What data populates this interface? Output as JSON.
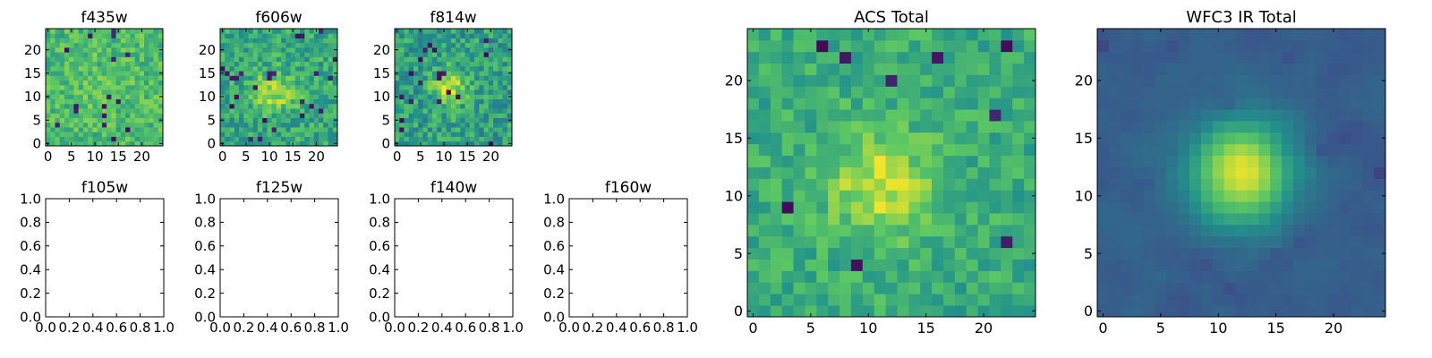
{
  "figure": {
    "background": "#ffffff",
    "colormap": "viridis",
    "colormap_stops": [
      "#440154",
      "#3b528b",
      "#21918c",
      "#5ec962",
      "#fde725"
    ]
  },
  "chart_data": [
    {
      "id": "f435w",
      "type": "heatmap",
      "title": "f435w",
      "xlim": [
        -0.5,
        24.5
      ],
      "ylim": [
        -0.5,
        24.5
      ],
      "grid": false,
      "xticks": [
        0,
        5,
        10,
        15,
        20
      ],
      "yticks": [
        0,
        5,
        10,
        15,
        20
      ],
      "xticklabels": [
        "0",
        "5",
        "10",
        "15",
        "20"
      ],
      "yticklabels": [
        "0",
        "5",
        "10",
        "15",
        "20"
      ],
      "pixels": {
        "size": 25,
        "model": "noise",
        "seed": 11,
        "background": 0.68,
        "noise": 0.14,
        "peak": 0.05,
        "sigma": 4,
        "center": [
          12,
          12
        ],
        "dip_prob": 0.03
      }
    },
    {
      "id": "f606w",
      "type": "heatmap",
      "title": "f606w",
      "xlim": [
        -0.5,
        24.5
      ],
      "ylim": [
        -0.5,
        24.5
      ],
      "grid": false,
      "xticks": [
        0,
        5,
        10,
        15,
        20
      ],
      "yticks": [
        0,
        5,
        10,
        15,
        20
      ],
      "xticklabels": [
        "0",
        "5",
        "10",
        "15",
        "20"
      ],
      "yticklabels": [
        "0",
        "5",
        "10",
        "15",
        "20"
      ],
      "pixels": {
        "size": 25,
        "model": "noise",
        "seed": 23,
        "background": 0.6,
        "noise": 0.16,
        "peak": 0.28,
        "sigma": 3,
        "center": [
          11,
          11
        ],
        "dip_prob": 0.03
      }
    },
    {
      "id": "f814w",
      "type": "heatmap",
      "title": "f814w",
      "xlim": [
        -0.5,
        24.5
      ],
      "ylim": [
        -0.5,
        24.5
      ],
      "grid": false,
      "xticks": [
        0,
        5,
        10,
        15,
        20
      ],
      "yticks": [
        0,
        5,
        10,
        15,
        20
      ],
      "xticklabels": [
        "0",
        "5",
        "10",
        "15",
        "20"
      ],
      "yticklabels": [
        "0",
        "5",
        "10",
        "15",
        "20"
      ],
      "pixels": {
        "size": 25,
        "model": "noise",
        "seed": 37,
        "background": 0.56,
        "noise": 0.17,
        "peak": 0.36,
        "sigma": 2.5,
        "center": [
          11,
          12
        ],
        "dip_prob": 0.035
      }
    },
    {
      "id": "f105w",
      "type": "heatmap",
      "title": "f105w",
      "xlim": [
        0.0,
        1.0
      ],
      "ylim": [
        0.0,
        1.0
      ],
      "grid": false,
      "empty": true,
      "xticks": [
        0.0,
        0.2,
        0.4,
        0.6,
        0.8,
        1.0
      ],
      "yticks": [
        0.0,
        0.2,
        0.4,
        0.6,
        0.8,
        1.0
      ],
      "xticklabels": [
        "0.0",
        "0.2",
        "0.4",
        "0.6",
        "0.8",
        "1.0"
      ],
      "yticklabels": [
        "0.0",
        "0.2",
        "0.4",
        "0.6",
        "0.8",
        "1.0"
      ]
    },
    {
      "id": "f125w",
      "type": "heatmap",
      "title": "f125w",
      "xlim": [
        0.0,
        1.0
      ],
      "ylim": [
        0.0,
        1.0
      ],
      "grid": false,
      "empty": true,
      "xticks": [
        0.0,
        0.2,
        0.4,
        0.6,
        0.8,
        1.0
      ],
      "yticks": [
        0.0,
        0.2,
        0.4,
        0.6,
        0.8,
        1.0
      ],
      "xticklabels": [
        "0.0",
        "0.2",
        "0.4",
        "0.6",
        "0.8",
        "1.0"
      ],
      "yticklabels": [
        "0.0",
        "0.2",
        "0.4",
        "0.6",
        "0.8",
        "1.0"
      ]
    },
    {
      "id": "f140w",
      "type": "heatmap",
      "title": "f140w",
      "xlim": [
        0.0,
        1.0
      ],
      "ylim": [
        0.0,
        1.0
      ],
      "grid": false,
      "empty": true,
      "xticks": [
        0.0,
        0.2,
        0.4,
        0.6,
        0.8,
        1.0
      ],
      "yticks": [
        0.0,
        0.2,
        0.4,
        0.6,
        0.8,
        1.0
      ],
      "xticklabels": [
        "0.0",
        "0.2",
        "0.4",
        "0.6",
        "0.8",
        "1.0"
      ],
      "yticklabels": [
        "0.0",
        "0.2",
        "0.4",
        "0.6",
        "0.8",
        "1.0"
      ]
    },
    {
      "id": "f160w",
      "type": "heatmap",
      "title": "f160w",
      "xlim": [
        0.0,
        1.0
      ],
      "ylim": [
        0.0,
        1.0
      ],
      "grid": false,
      "empty": true,
      "xticks": [
        0.0,
        0.2,
        0.4,
        0.6,
        0.8,
        1.0
      ],
      "yticks": [
        0.0,
        0.2,
        0.4,
        0.6,
        0.8,
        1.0
      ],
      "xticklabels": [
        "0.0",
        "0.2",
        "0.4",
        "0.6",
        "0.8",
        "1.0"
      ],
      "yticklabels": [
        "0.0",
        "0.2",
        "0.4",
        "0.6",
        "0.8",
        "1.0"
      ]
    },
    {
      "id": "acs-total",
      "type": "heatmap",
      "title": "ACS Total",
      "xlim": [
        -0.5,
        24.5
      ],
      "ylim": [
        -0.5,
        24.5
      ],
      "grid": false,
      "xticks": [
        0,
        5,
        10,
        15,
        20
      ],
      "yticks": [
        0,
        5,
        10,
        15,
        20
      ],
      "xticklabels": [
        "0",
        "5",
        "10",
        "15",
        "20"
      ],
      "yticklabels": [
        "0",
        "5",
        "10",
        "15",
        "20"
      ],
      "pixels": {
        "size": 25,
        "model": "noise",
        "seed": 53,
        "background": 0.62,
        "noise": 0.12,
        "peak": 0.3,
        "sigma": 3.2,
        "center": [
          11,
          11
        ],
        "dip_prob": 0.015
      }
    },
    {
      "id": "wfc3-ir-total",
      "type": "heatmap",
      "title": "WFC3 IR Total",
      "xlim": [
        -0.5,
        24.5
      ],
      "ylim": [
        -0.5,
        24.5
      ],
      "grid": false,
      "xticks": [
        0,
        5,
        10,
        15,
        20
      ],
      "yticks": [
        0,
        5,
        10,
        15,
        20
      ],
      "xticklabels": [
        "0",
        "5",
        "10",
        "15",
        "20"
      ],
      "yticklabels": [
        "0",
        "5",
        "10",
        "15",
        "20"
      ],
      "pixels": {
        "size": 25,
        "model": "smooth",
        "seed": 71,
        "background": 0.3,
        "noise": 0.06,
        "peak": 0.7,
        "sigma": 3,
        "center": [
          12,
          12
        ],
        "dip_prob": 0.012
      }
    }
  ]
}
